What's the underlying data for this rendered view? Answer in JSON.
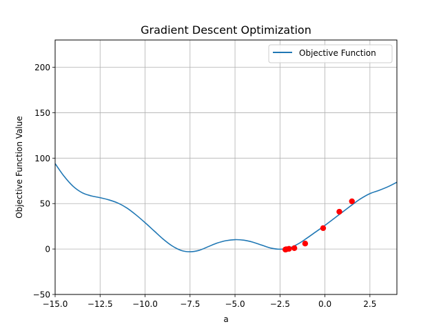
{
  "chart_data": {
    "type": "line",
    "title": "Gradient Descent Optimization",
    "xlabel": "a",
    "ylabel": "Objective Function Value",
    "xlim": [
      -15,
      4
    ],
    "ylim": [
      -50,
      230
    ],
    "x_ticks": [
      -15,
      -12.5,
      -10,
      -7.5,
      -5,
      -2.5,
      0,
      2.5
    ],
    "x_tick_labels": [
      "−15.0",
      "−12.5",
      "−10.0",
      "−7.5",
      "−5.0",
      "−2.5",
      "0.0",
      "2.5"
    ],
    "y_ticks": [
      -50,
      0,
      50,
      100,
      150,
      200
    ],
    "y_tick_labels": [
      "−50",
      "0",
      "50",
      "100",
      "150",
      "200"
    ],
    "grid": true,
    "legend_position": "top-right",
    "series": [
      {
        "name": "Objective Function",
        "kind": "line",
        "color": "#1f77b4",
        "x": [
          -15,
          -14.5,
          -14,
          -13.5,
          -13,
          -12.5,
          -12,
          -11.5,
          -11,
          -10.5,
          -10,
          -9.5,
          -9,
          -8.5,
          -8,
          -7.5,
          -7,
          -6.5,
          -6,
          -5.5,
          -5,
          -4.5,
          -4,
          -3.5,
          -3,
          -2.5,
          -2,
          -1.5,
          -1,
          -0.5,
          0,
          0.5,
          1,
          1.5,
          2,
          2.5,
          3,
          3.5,
          4
        ],
        "y": [
          94,
          80,
          69,
          62,
          58.5,
          56.5,
          54,
          50.5,
          45,
          37.5,
          29,
          20,
          11,
          3.5,
          -1.5,
          -3,
          -1.5,
          2.5,
          6.5,
          9.2,
          10.3,
          9.7,
          7.5,
          4.2,
          1,
          -0.2,
          1,
          5.5,
          12,
          19,
          26,
          33.5,
          41,
          48.5,
          55.5,
          61,
          64.5,
          68.5,
          73.5
        ]
      },
      {
        "name": "",
        "kind": "points",
        "color": "#ff0000",
        "x": [
          1.5,
          0.8,
          -0.1,
          -1.1,
          -1.7,
          -2,
          -2.15,
          -2.2
        ],
        "y": [
          52.5,
          41,
          23,
          6,
          1,
          0.2,
          -0.3,
          -0.6
        ]
      }
    ]
  }
}
